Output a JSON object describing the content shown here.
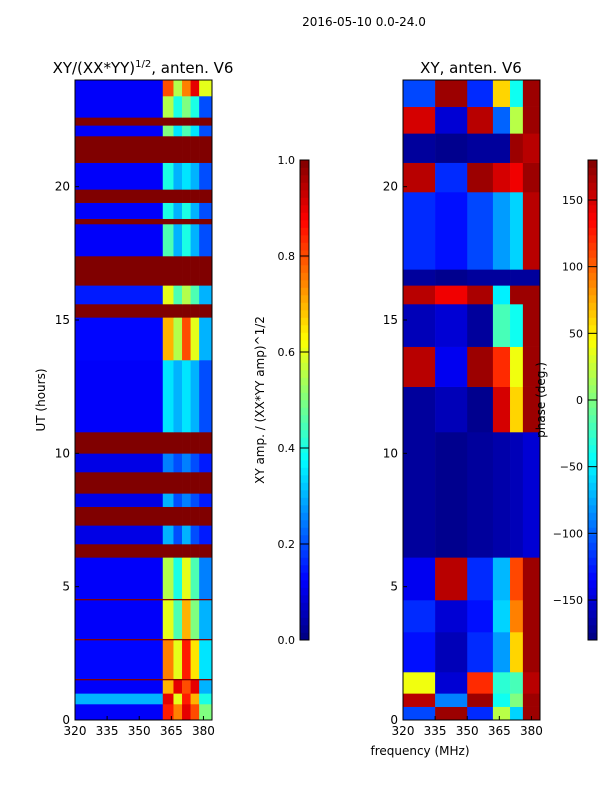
{
  "suptitle": "2016-05-10 0.0-24.0",
  "xlabel": "frequency (MHz)",
  "chart_data": [
    {
      "type": "heatmap",
      "title": "XY/(XX*YY)^1/2, anten. V6",
      "title_main": "XY/(XX*YY)",
      "title_sup": "1/2",
      "title_tail": ", anten. V6",
      "ylabel": "UT (hours)",
      "xlim": [
        320,
        384
      ],
      "ylim": [
        0,
        24
      ],
      "xticks": [
        "320",
        "335",
        "350",
        "365",
        "380"
      ],
      "xtick_values": [
        320,
        335,
        350,
        365,
        380
      ],
      "yticks": [
        "0",
        "5",
        "10",
        "15",
        "20"
      ],
      "ytick_values": [
        0,
        5,
        10,
        15,
        20
      ],
      "colorbar": {
        "label": "XY amp. / (XX*YY amp)^1/2",
        "label_main": "XY amp. / (XX*YY amp)",
        "label_sup": "1/2",
        "range": [
          0,
          1
        ],
        "ticks": [
          "0.0",
          "0.2",
          "0.4",
          "0.6",
          "0.8",
          "1.0"
        ],
        "tick_values": [
          0,
          0.2,
          0.4,
          0.6,
          0.8,
          1.0
        ]
      },
      "freq_segments": [
        320,
        361,
        366,
        370,
        374,
        378,
        384
      ],
      "bands": [
        [
          0,
          0.6,
          [
            0.12,
            0.85,
            0.75,
            0.9,
            0.8,
            0.5
          ]
        ],
        [
          0.6,
          1.0,
          [
            0.3,
            0.9,
            0.6,
            0.85,
            0.7,
            0.4
          ]
        ],
        [
          1.0,
          1.5,
          [
            0.12,
            0.7,
            0.9,
            0.8,
            0.9,
            0.3
          ]
        ],
        [
          1.5,
          1.55,
          [
            1,
            1,
            1,
            1,
            1,
            1
          ]
        ],
        [
          1.55,
          3.0,
          [
            0.13,
            0.75,
            0.6,
            0.85,
            0.65,
            0.35
          ]
        ],
        [
          3.0,
          3.05,
          [
            1,
            1,
            1,
            1,
            1,
            1
          ]
        ],
        [
          3.05,
          4.5,
          [
            0.12,
            0.6,
            0.45,
            0.7,
            0.5,
            0.3
          ]
        ],
        [
          4.5,
          4.55,
          [
            1,
            1,
            1,
            1,
            1,
            1
          ]
        ],
        [
          4.55,
          6.1,
          [
            0.12,
            0.55,
            0.4,
            0.6,
            0.45,
            0.25
          ]
        ],
        [
          6.1,
          6.6,
          [
            1,
            1,
            1,
            1,
            1,
            1
          ]
        ],
        [
          6.6,
          7.3,
          [
            0.1,
            0.3,
            0.2,
            0.3,
            0.2,
            0.15
          ]
        ],
        [
          7.3,
          8.0,
          [
            1,
            1,
            1,
            1,
            1,
            1
          ]
        ],
        [
          8.0,
          8.5,
          [
            0.1,
            0.3,
            0.2,
            0.25,
            0.2,
            0.15
          ]
        ],
        [
          8.5,
          9.3,
          [
            1,
            1,
            1,
            1,
            1,
            1
          ]
        ],
        [
          9.3,
          10.0,
          [
            0.1,
            0.25,
            0.2,
            0.25,
            0.2,
            0.15
          ]
        ],
        [
          10.0,
          10.8,
          [
            1,
            1,
            1,
            1,
            1,
            1
          ]
        ],
        [
          10.8,
          13.5,
          [
            0.12,
            0.35,
            0.3,
            0.35,
            0.3,
            0.2
          ]
        ],
        [
          13.5,
          15.1,
          [
            0.13,
            0.7,
            0.55,
            0.8,
            0.6,
            0.3
          ]
        ],
        [
          15.1,
          15.6,
          [
            1,
            1,
            1,
            1,
            1,
            1
          ]
        ],
        [
          15.6,
          16.3,
          [
            0.15,
            0.6,
            0.45,
            0.55,
            0.45,
            0.3
          ]
        ],
        [
          16.3,
          17.4,
          [
            1,
            1,
            1,
            1,
            1,
            1
          ]
        ],
        [
          17.4,
          18.6,
          [
            0.12,
            0.45,
            0.3,
            0.4,
            0.3,
            0.2
          ]
        ],
        [
          18.6,
          18.8,
          [
            1,
            1,
            1,
            1,
            1,
            1
          ]
        ],
        [
          18.8,
          19.4,
          [
            0.12,
            0.4,
            0.3,
            0.4,
            0.3,
            0.2
          ]
        ],
        [
          19.4,
          19.9,
          [
            1,
            1,
            1,
            1,
            1,
            1
          ]
        ],
        [
          19.9,
          20.9,
          [
            0.12,
            0.4,
            0.3,
            0.35,
            0.3,
            0.2
          ]
        ],
        [
          20.9,
          21.9,
          [
            1,
            1,
            1,
            1,
            1,
            1
          ]
        ],
        [
          21.9,
          22.3,
          [
            0.12,
            0.5,
            0.35,
            0.45,
            0.35,
            0.2
          ]
        ],
        [
          22.3,
          22.6,
          [
            1,
            1,
            1,
            1,
            1,
            1
          ]
        ],
        [
          22.6,
          23.4,
          [
            0.12,
            0.55,
            0.4,
            0.5,
            0.4,
            0.2
          ]
        ],
        [
          23.4,
          24,
          [
            0.12,
            0.8,
            0.55,
            0.75,
            0.9,
            0.6
          ]
        ]
      ]
    },
    {
      "type": "heatmap",
      "title": "XY, anten. V6",
      "ylabel": "",
      "xlim": [
        320,
        384
      ],
      "ylim": [
        0,
        24
      ],
      "xticks": [
        "320",
        "335",
        "350",
        "365",
        "380"
      ],
      "xtick_values": [
        320,
        335,
        350,
        365,
        380
      ],
      "yticks": [
        "0",
        "5",
        "10",
        "15",
        "20"
      ],
      "ytick_values": [
        0,
        5,
        10,
        15,
        20
      ],
      "colorbar": {
        "label": "phase (deg.)",
        "range": [
          -180,
          180
        ],
        "ticks": [
          "−150",
          "−100",
          "−50",
          "0",
          "50",
          "100",
          "150"
        ],
        "tick_values": [
          -150,
          -100,
          -50,
          0,
          50,
          100,
          150
        ]
      },
      "freq_segments": [
        320,
        335,
        350,
        362,
        370,
        376,
        384
      ],
      "bands": [
        [
          0,
          0.5,
          [
            -110,
            170,
            -120,
            20,
            -60,
            170
          ]
        ],
        [
          0.5,
          1.0,
          [
            160,
            -90,
            170,
            -40,
            0,
            170
          ]
        ],
        [
          1.0,
          1.8,
          [
            40,
            -150,
            120,
            -30,
            -20,
            160
          ]
        ],
        [
          1.8,
          3.3,
          [
            -130,
            -160,
            -120,
            -80,
            60,
            170
          ]
        ],
        [
          3.3,
          4.5,
          [
            -120,
            -150,
            -130,
            -60,
            90,
            170
          ]
        ],
        [
          4.5,
          6.1,
          [
            -140,
            160,
            -120,
            -70,
            110,
            170
          ]
        ],
        [
          6.1,
          10.8,
          [
            -170,
            -175,
            -170,
            -165,
            -160,
            -150
          ]
        ],
        [
          10.8,
          12.5,
          [
            -170,
            -160,
            -175,
            150,
            60,
            170
          ]
        ],
        [
          12.5,
          14.0,
          [
            160,
            -140,
            170,
            120,
            40,
            170
          ]
        ],
        [
          14.0,
          15.6,
          [
            -160,
            -150,
            -170,
            -20,
            -40,
            170
          ]
        ],
        [
          15.6,
          16.3,
          [
            160,
            140,
            165,
            -50,
            170,
            170
          ]
        ],
        [
          16.3,
          16.9,
          [
            -170,
            -175,
            -170,
            -170,
            -170,
            -170
          ]
        ],
        [
          16.9,
          19.8,
          [
            -120,
            -130,
            -110,
            -80,
            -60,
            160
          ]
        ],
        [
          19.8,
          20.9,
          [
            160,
            -120,
            170,
            150,
            140,
            170
          ]
        ],
        [
          20.9,
          22.0,
          [
            -170,
            -175,
            -170,
            -170,
            170,
            160
          ]
        ],
        [
          22.0,
          23.0,
          [
            150,
            -150,
            160,
            -100,
            20,
            170
          ]
        ],
        [
          23.0,
          24,
          [
            -110,
            170,
            -120,
            60,
            -40,
            170
          ]
        ]
      ]
    }
  ]
}
